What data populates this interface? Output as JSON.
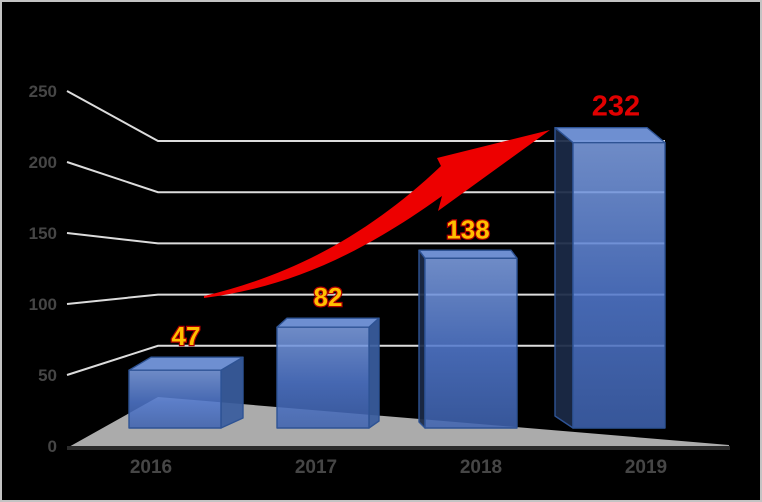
{
  "window": {
    "background": "#000000",
    "border_color": "#c3c3c3"
  },
  "chart_data": {
    "type": "bar",
    "subtype": "3d-column",
    "title": "",
    "xlabel": "",
    "ylabel": "",
    "categories": [
      "2016",
      "2017",
      "2018",
      "2019"
    ],
    "series": [
      {
        "name": "values",
        "values": [
          47,
          82,
          138,
          232
        ]
      }
    ],
    "data_labels": [
      "47",
      "82",
      "138",
      "232"
    ],
    "emphasis_index": 3,
    "emphasized_label": "232",
    "yticks": [
      "0",
      "50",
      "100",
      "150",
      "200",
      "250"
    ],
    "ylim": [
      0,
      250
    ],
    "grid": true,
    "legend": "none",
    "annotation": {
      "type": "growth-arrow",
      "meaning": "upward trend",
      "color": "#ed0000"
    },
    "colors": {
      "bar_front_top": "#7fa0e4",
      "bar_front_mid": "#5077cc",
      "bar_front_bottom": "#3f63b0",
      "bar_top_face": "#7294d8",
      "bar_side_right": "#395d9e",
      "bar_side_left": "#1b2a47",
      "bar_edge": "#2e5394",
      "gridline": "#dcdcdc",
      "floor": "#ababab",
      "axis_front_line": "#2b2b2b",
      "tick_label": "#464646",
      "data_label_fill": "#ffc000",
      "data_label_outline": "#b00000",
      "emphasis_label": "#e00000",
      "arrow": "#ed0000"
    }
  }
}
